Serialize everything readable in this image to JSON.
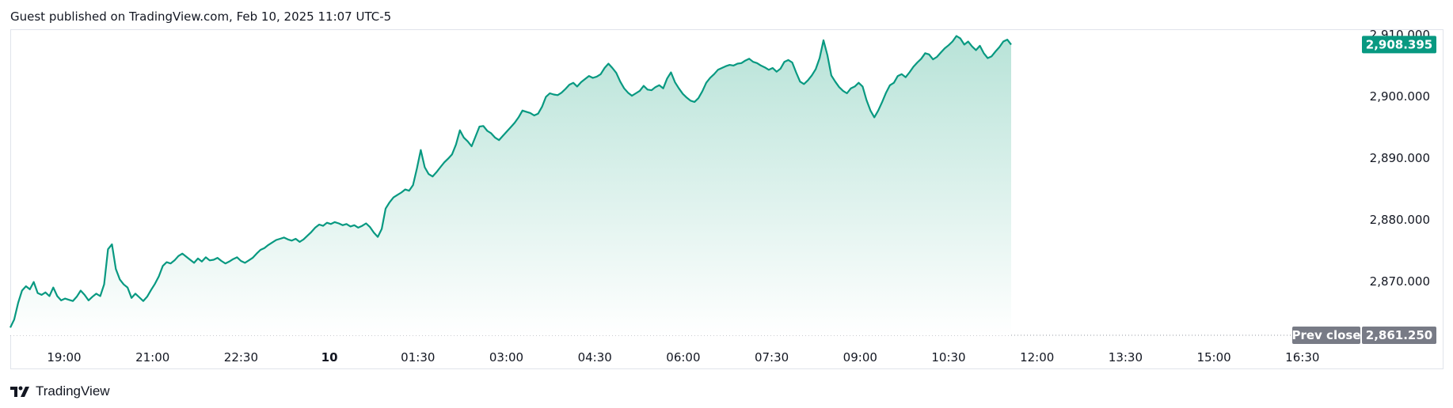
{
  "header": {
    "published": "Guest published on TradingView.com, Feb 10, 2025 11:07 UTC-5"
  },
  "footer": {
    "brand": "TradingView",
    "logo_icon": "tradingview-logo-icon"
  },
  "colors": {
    "line": "#089981",
    "fill_top": "#b8e3d8",
    "fill_bottom": "#ffffff",
    "last_badge": "#089981",
    "prev_badge": "#787b86",
    "grid_dotted": "#9598a1"
  },
  "chart_data": {
    "type": "area",
    "x_ticks": [
      {
        "label": "19:00",
        "bold": false
      },
      {
        "label": "21:00",
        "bold": false
      },
      {
        "label": "22:30",
        "bold": false
      },
      {
        "label": "10",
        "bold": true
      },
      {
        "label": "01:30",
        "bold": false
      },
      {
        "label": "03:00",
        "bold": false
      },
      {
        "label": "04:30",
        "bold": false
      },
      {
        "label": "06:00",
        "bold": false
      },
      {
        "label": "07:30",
        "bold": false
      },
      {
        "label": "09:00",
        "bold": false
      },
      {
        "label": "10:30",
        "bold": false
      },
      {
        "label": "12:00",
        "bold": false
      },
      {
        "label": "13:30",
        "bold": false
      },
      {
        "label": "15:00",
        "bold": false
      },
      {
        "label": "16:30",
        "bold": false
      }
    ],
    "y_ticks": [
      "2,910.000",
      "2,900.000",
      "2,890.000",
      "2,880.000",
      "2,870.000"
    ],
    "y_tick_values": [
      2910,
      2900,
      2890,
      2880,
      2870
    ],
    "ylim": [
      2861.25,
      2910.5
    ],
    "last_price": {
      "label": "2,908.395",
      "value": 2908.395
    },
    "prev_close": {
      "text": "Prev close",
      "label": "2,861.250",
      "value": 2861.25
    },
    "series": [
      {
        "values": [
          2862.5,
          2863.8,
          2866.5,
          2868.5,
          2869.2,
          2868.7,
          2869.9,
          2868.1,
          2867.8,
          2868.2,
          2867.6,
          2869.0,
          2867.6,
          2866.9,
          2867.2,
          2867.0,
          2866.8,
          2867.5,
          2868.5,
          2867.8,
          2866.9,
          2867.5,
          2868.0,
          2867.6,
          2869.5,
          2875.2,
          2876.0,
          2872.0,
          2870.3,
          2869.5,
          2869.0,
          2867.3,
          2868.0,
          2867.4,
          2866.8,
          2867.5,
          2868.6,
          2869.6,
          2870.8,
          2872.5,
          2873.1,
          2872.9,
          2873.4,
          2874.1,
          2874.5,
          2874.0,
          2873.5,
          2873.0,
          2873.7,
          2873.2,
          2873.9,
          2873.4,
          2873.5,
          2873.8,
          2873.3,
          2872.9,
          2873.2,
          2873.6,
          2873.9,
          2873.3,
          2873.0,
          2873.4,
          2873.8,
          2874.5,
          2875.1,
          2875.4,
          2875.9,
          2876.3,
          2876.7,
          2876.9,
          2877.1,
          2876.8,
          2876.6,
          2876.9,
          2876.4,
          2876.8,
          2877.4,
          2878.0,
          2878.7,
          2879.2,
          2879.0,
          2879.5,
          2879.3,
          2879.6,
          2879.4,
          2879.1,
          2879.3,
          2878.9,
          2879.1,
          2878.7,
          2879.0,
          2879.4,
          2878.8,
          2877.9,
          2877.2,
          2878.5,
          2881.8,
          2882.8,
          2883.6,
          2884.0,
          2884.4,
          2884.9,
          2884.7,
          2885.6,
          2888.3,
          2891.3,
          2888.5,
          2887.4,
          2887.0,
          2887.7,
          2888.5,
          2889.3,
          2889.9,
          2890.6,
          2892.2,
          2894.5,
          2893.3,
          2892.7,
          2891.9,
          2893.5,
          2895.1,
          2895.2,
          2894.4,
          2894.0,
          2893.3,
          2892.9,
          2893.6,
          2894.3,
          2895.0,
          2895.7,
          2896.6,
          2897.7,
          2897.5,
          2897.3,
          2896.9,
          2897.2,
          2898.3,
          2899.9,
          2900.5,
          2900.3,
          2900.2,
          2900.6,
          2901.2,
          2901.9,
          2902.2,
          2901.6,
          2902.3,
          2902.8,
          2903.3,
          2903.0,
          2903.2,
          2903.6,
          2904.6,
          2905.3,
          2904.6,
          2903.8,
          2902.4,
          2901.3,
          2900.6,
          2900.1,
          2900.5,
          2900.9,
          2901.7,
          2901.1,
          2901.0,
          2901.5,
          2901.8,
          2901.3,
          2902.9,
          2903.9,
          2902.3,
          2901.3,
          2900.4,
          2899.8,
          2899.3,
          2899.1,
          2899.7,
          2900.8,
          2902.2,
          2903.0,
          2903.6,
          2904.3,
          2904.6,
          2904.9,
          2905.1,
          2905.0,
          2905.3,
          2905.4,
          2905.8,
          2906.1,
          2905.6,
          2905.4,
          2905.0,
          2904.7,
          2904.3,
          2904.6,
          2904.0,
          2904.5,
          2905.6,
          2905.9,
          2905.5,
          2903.9,
          2902.4,
          2902.0,
          2902.6,
          2903.4,
          2904.4,
          2906.2,
          2909.1,
          2906.7,
          2903.4,
          2902.4,
          2901.5,
          2900.9,
          2900.5,
          2901.3,
          2901.6,
          2902.2,
          2901.6,
          2899.4,
          2897.7,
          2896.6,
          2897.7,
          2899.1,
          2900.6,
          2901.8,
          2902.2,
          2903.3,
          2903.6,
          2903.1,
          2903.9,
          2904.8,
          2905.5,
          2906.1,
          2907.0,
          2906.8,
          2906.0,
          2906.4,
          2907.1,
          2907.8,
          2908.3,
          2908.9,
          2909.8,
          2909.4,
          2908.4,
          2908.9,
          2908.1,
          2907.5,
          2908.2,
          2907.0,
          2906.2,
          2906.5,
          2907.3,
          2908.0,
          2908.9,
          2909.2,
          2908.395
        ]
      }
    ]
  }
}
